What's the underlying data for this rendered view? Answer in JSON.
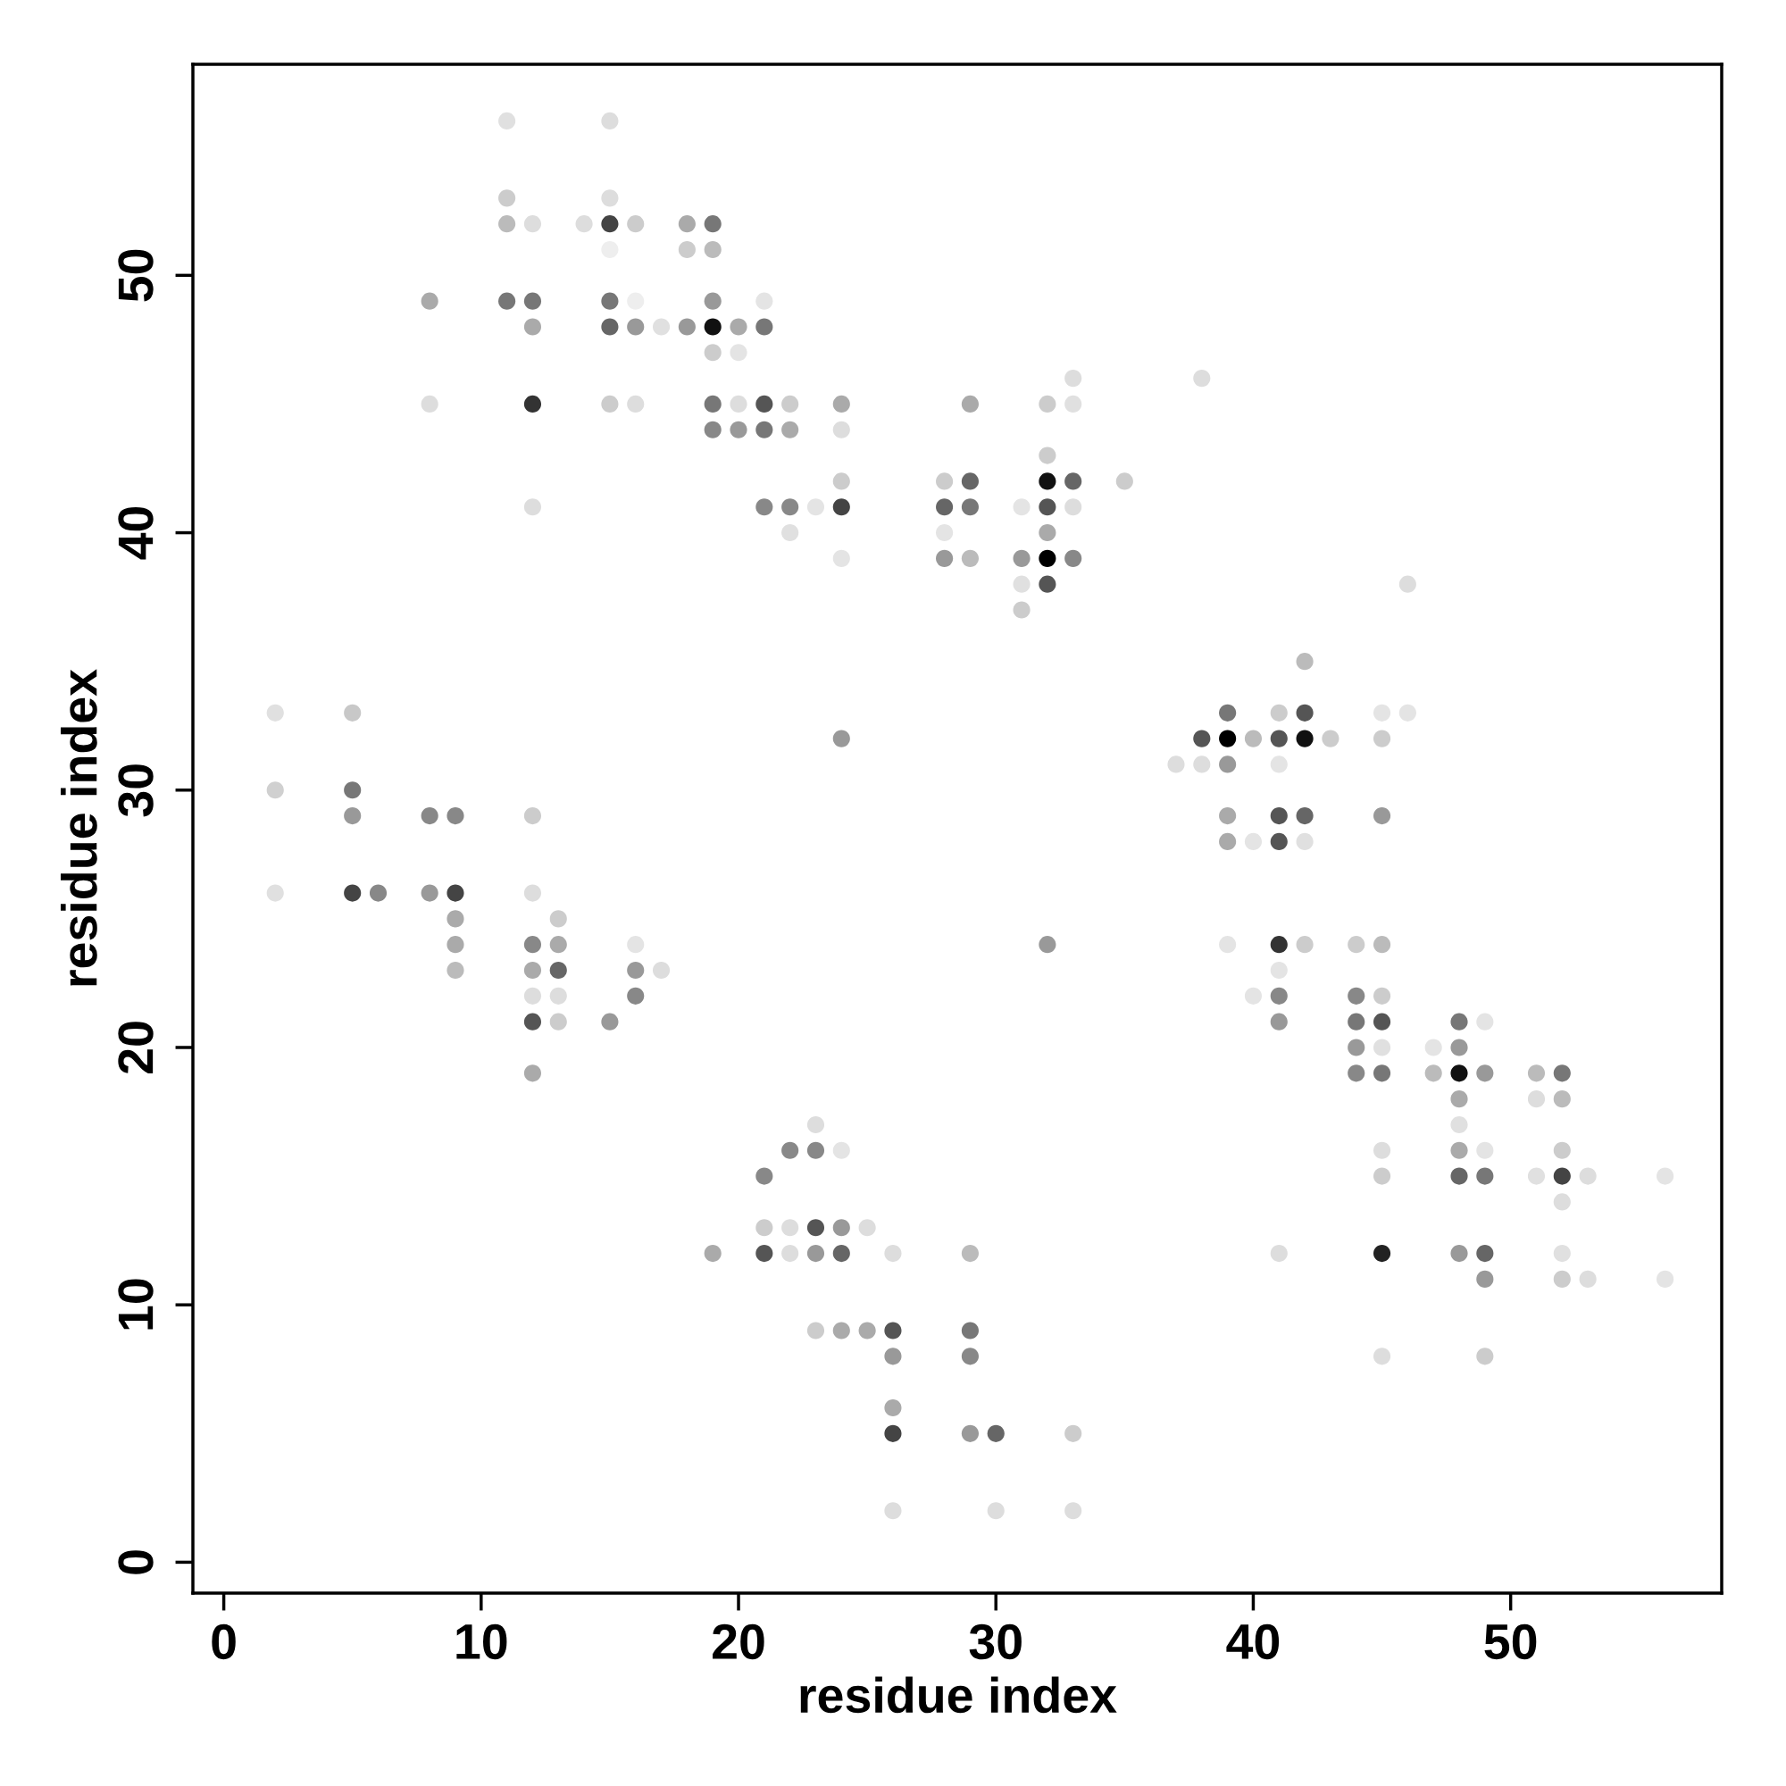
{
  "chart_data": {
    "type": "scatter",
    "xlabel": "residue index",
    "ylabel": "residue index",
    "xlim": [
      -1.2,
      58.2
    ],
    "ylim": [
      -1.2,
      58.2
    ],
    "xticks": [
      0,
      10,
      20,
      30,
      40,
      50
    ],
    "yticks": [
      0,
      10,
      20,
      30,
      40,
      50
    ],
    "grid": false,
    "legend": false,
    "marker": "circle",
    "series": [
      {
        "x": [
          2,
          2,
          2,
          5,
          5,
          5,
          5,
          6,
          8,
          8,
          8,
          8,
          9,
          9,
          9,
          9,
          9,
          11,
          11,
          11,
          11,
          12,
          12,
          12,
          12,
          12,
          12,
          12,
          12,
          12,
          12,
          12,
          12,
          13,
          13,
          13,
          13,
          13,
          14,
          15,
          15,
          15,
          15,
          15,
          15,
          15,
          15,
          16,
          16,
          16,
          16,
          16,
          16,
          16,
          17,
          17,
          18,
          18,
          18,
          19,
          19,
          19,
          19,
          19,
          19,
          19,
          19,
          20,
          20,
          20,
          20,
          21,
          21,
          21,
          21,
          21,
          21,
          21,
          21,
          22,
          22,
          22,
          22,
          22,
          22,
          22,
          23,
          23,
          23,
          23,
          23,
          23,
          24,
          24,
          24,
          24,
          24,
          24,
          24,
          24,
          24,
          24,
          25,
          25,
          26,
          26,
          26,
          26,
          26,
          26,
          28,
          28,
          28,
          28,
          29,
          29,
          29,
          29,
          29,
          29,
          29,
          29,
          30,
          30,
          31,
          31,
          31,
          31,
          32,
          32,
          32,
          32,
          32,
          32,
          32,
          32,
          33,
          33,
          33,
          33,
          33,
          33,
          33,
          35,
          37,
          38,
          38,
          38,
          39,
          39,
          39,
          39,
          39,
          39,
          40,
          40,
          40,
          41,
          41,
          41,
          41,
          41,
          41,
          41,
          41,
          41,
          41,
          42,
          42,
          42,
          42,
          42,
          42,
          43,
          44,
          44,
          44,
          44,
          44,
          45,
          45,
          45,
          45,
          45,
          45,
          45,
          45,
          45,
          45,
          45,
          45,
          46,
          46,
          47,
          47,
          48,
          48,
          48,
          48,
          48,
          48,
          48,
          48,
          49,
          49,
          49,
          49,
          49,
          49,
          49,
          51,
          51,
          51,
          52,
          52,
          52,
          52,
          52,
          52,
          52,
          53,
          53,
          56,
          56
        ],
        "values": [
          33,
          30,
          26,
          33,
          30,
          29,
          26,
          26,
          49,
          45,
          29,
          26,
          29,
          26,
          25,
          24,
          23,
          56,
          53,
          52,
          49,
          52,
          49,
          48,
          45,
          41,
          29,
          26,
          24,
          23,
          22,
          21,
          19,
          25,
          24,
          23,
          22,
          21,
          52,
          56,
          53,
          52,
          51,
          49,
          48,
          45,
          21,
          52,
          49,
          48,
          45,
          24,
          23,
          22,
          48,
          23,
          52,
          51,
          48,
          52,
          51,
          49,
          48,
          47,
          45,
          44,
          12,
          48,
          47,
          45,
          44,
          49,
          48,
          45,
          44,
          41,
          15,
          13,
          12,
          45,
          44,
          41,
          40,
          16,
          13,
          12,
          41,
          17,
          16,
          13,
          12,
          9,
          45,
          44,
          42,
          41,
          39,
          32,
          16,
          13,
          12,
          9,
          13,
          9,
          12,
          9,
          8,
          6,
          5,
          2,
          42,
          41,
          40,
          39,
          45,
          42,
          41,
          39,
          12,
          9,
          8,
          5,
          5,
          2,
          41,
          39,
          38,
          37,
          45,
          43,
          42,
          41,
          40,
          39,
          38,
          24,
          46,
          45,
          42,
          41,
          39,
          5,
          2,
          42,
          31,
          46,
          32,
          31,
          33,
          32,
          31,
          29,
          28,
          24,
          32,
          28,
          22,
          33,
          32,
          31,
          29,
          28,
          24,
          23,
          22,
          21,
          12,
          35,
          33,
          32,
          29,
          28,
          24,
          32,
          24,
          22,
          21,
          20,
          19,
          33,
          32,
          29,
          24,
          22,
          21,
          20,
          19,
          16,
          15,
          12,
          8,
          38,
          33,
          20,
          19,
          21,
          20,
          19,
          18,
          17,
          16,
          15,
          12,
          21,
          19,
          16,
          15,
          12,
          11,
          8,
          19,
          18,
          15,
          19,
          18,
          16,
          15,
          14,
          12,
          11,
          15,
          11,
          15,
          11
        ],
        "colors": [
          "#e0e0e0",
          "#d0d0d0",
          "#e0e0e0",
          "#c8c8c8",
          "#777777",
          "#999999",
          "#444444",
          "#888888",
          "#aaaaaa",
          "#dddddd",
          "#888888",
          "#999999",
          "#888888",
          "#444444",
          "#aaaaaa",
          "#aaaaaa",
          "#bbbbbb",
          "#e0e0e0",
          "#cccccc",
          "#bbbbbb",
          "#777777",
          "#dddddd",
          "#777777",
          "#aaaaaa",
          "#333333",
          "#dddddd",
          "#cccccc",
          "#dddddd",
          "#888888",
          "#aaaaaa",
          "#dddddd",
          "#555555",
          "#aaaaaa",
          "#cccccc",
          "#aaaaaa",
          "#666666",
          "#dddddd",
          "#cccccc",
          "#dddddd",
          "#dddddd",
          "#dddddd",
          "#444444",
          "#eeeeee",
          "#777777",
          "#666666",
          "#cccccc",
          "#999999",
          "#cccccc",
          "#eeeeee",
          "#999999",
          "#dddddd",
          "#e4e4e4",
          "#999999",
          "#888888",
          "#e0e0e0",
          "#dddddd",
          "#aaaaaa",
          "#cccccc",
          "#999999",
          "#777777",
          "#bbbbbb",
          "#999999",
          "#111111",
          "#cccccc",
          "#777777",
          "#888888",
          "#aaaaaa",
          "#aaaaaa",
          "#e4e4e4",
          "#dddddd",
          "#999999",
          "#e4e4e4",
          "#777777",
          "#555555",
          "#777777",
          "#888888",
          "#888888",
          "#cccccc",
          "#555555",
          "#cccccc",
          "#aaaaaa",
          "#888888",
          "#e0e0e0",
          "#888888",
          "#dddddd",
          "#dddddd",
          "#e4e4e4",
          "#dddddd",
          "#888888",
          "#555555",
          "#999999",
          "#cccccc",
          "#aaaaaa",
          "#dddddd",
          "#cccccc",
          "#444444",
          "#e4e4e4",
          "#999999",
          "#e4e4e4",
          "#999999",
          "#666666",
          "#aaaaaa",
          "#dddddd",
          "#aaaaaa",
          "#dddddd",
          "#555555",
          "#999999",
          "#aaaaaa",
          "#444444",
          "#dddddd",
          "#cccccc",
          "#666666",
          "#e4e4e4",
          "#999999",
          "#aaaaaa",
          "#666666",
          "#777777",
          "#bbbbbb",
          "#bbbbbb",
          "#777777",
          "#888888",
          "#999999",
          "#666666",
          "#dddddd",
          "#e4e4e4",
          "#999999",
          "#e0e0e0",
          "#cccccc",
          "#cccccc",
          "#cccccc",
          "#111111",
          "#555555",
          "#aaaaaa",
          "#000000",
          "#555555",
          "#999999",
          "#dddddd",
          "#e0e0e0",
          "#666666",
          "#dddddd",
          "#888888",
          "#cccccc",
          "#dddddd",
          "#cccccc",
          "#dddddd",
          "#dddddd",
          "#555555",
          "#dddddd",
          "#777777",
          "#000000",
          "#999999",
          "#aaaaaa",
          "#aaaaaa",
          "#e4e4e4",
          "#bbbbbb",
          "#e4e4e4",
          "#e4e4e4",
          "#cccccc",
          "#555555",
          "#e4e4e4",
          "#555555",
          "#555555",
          "#333333",
          "#e4e4e4",
          "#888888",
          "#999999",
          "#dddddd",
          "#bbbbbb",
          "#555555",
          "#111111",
          "#666666",
          "#e0e0e0",
          "#cccccc",
          "#cccccc",
          "#cccccc",
          "#888888",
          "#777777",
          "#999999",
          "#888888",
          "#e4e4e4",
          "#cccccc",
          "#999999",
          "#bbbbbb",
          "#cccccc",
          "#555555",
          "#e0e0e0",
          "#777777",
          "#dddddd",
          "#cccccc",
          "#222222",
          "#dddddd",
          "#dddddd",
          "#e4e4e4",
          "#e4e4e4",
          "#bbbbbb",
          "#777777",
          "#999999",
          "#111111",
          "#aaaaaa",
          "#e0e0e0",
          "#aaaaaa",
          "#666666",
          "#999999",
          "#e4e4e4",
          "#999999",
          "#e4e4e4",
          "#777777",
          "#666666",
          "#999999",
          "#cccccc",
          "#bbbbbb",
          "#dddddd",
          "#e0e0e0",
          "#777777",
          "#bbbbbb",
          "#cccccc",
          "#444444",
          "#dddddd",
          "#e0e0e0",
          "#cccccc",
          "#dddddd",
          "#dddddd",
          "#e4e4e4",
          "#e4e4e4"
        ]
      }
    ]
  }
}
